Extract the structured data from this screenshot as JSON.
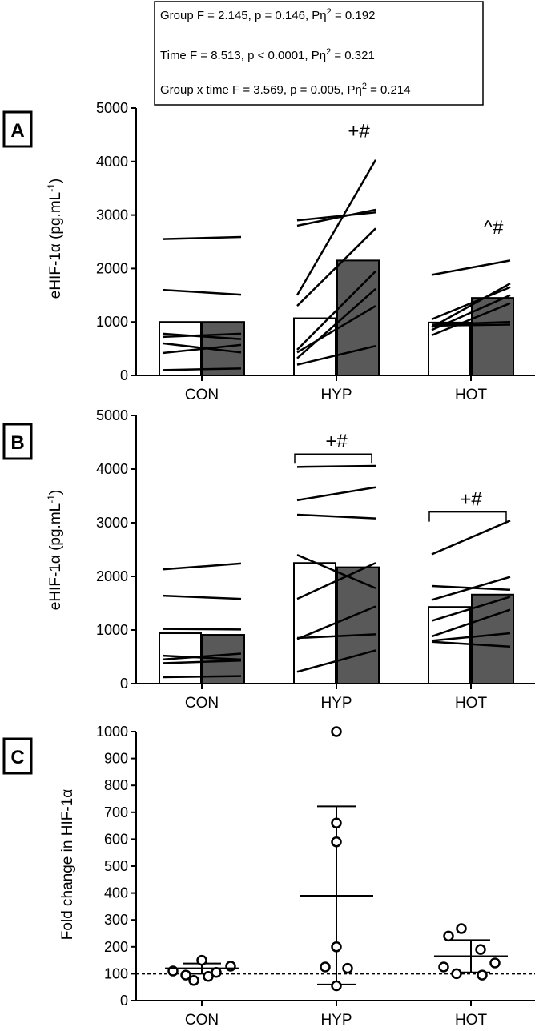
{
  "stats_box": {
    "lines": [
      {
        "prefix": "Group F = 2.145, p = 0.146, Pη",
        "sup": "2",
        "suffix": " = 0.192"
      },
      {
        "prefix": "Time F = 8.513, p < 0.0001, Pη",
        "sup": "2",
        "suffix": " = 0.321"
      },
      {
        "prefix": "Group x time  F = 3.569, p = 0.005, Pη",
        "sup": "2",
        "suffix": " = 0.214"
      }
    ]
  },
  "chart_data": [
    {
      "panel": "A",
      "type": "bar",
      "ylabel_main": "eHIF-1α (pg.mL",
      "ylabel_sup": "-1",
      "ylabel_end": ")",
      "ylim": [
        0,
        5000
      ],
      "yticks": [
        0,
        1000,
        2000,
        3000,
        4000,
        5000
      ],
      "categories": [
        "CON",
        "HYP",
        "HOT"
      ],
      "series": [
        {
          "fill": "#ffffff",
          "values": [
            1000,
            1070,
            990
          ]
        },
        {
          "fill": "#595959",
          "values": [
            1000,
            2150,
            1450
          ]
        }
      ],
      "individual_lines": [
        [
          [
            2550,
            2590
          ],
          [
            1600,
            1510
          ],
          [
            780,
            680
          ],
          [
            720,
            780
          ],
          [
            600,
            430
          ],
          [
            420,
            570
          ],
          [
            100,
            130
          ]
        ],
        [
          [
            2800,
            3100
          ],
          [
            2900,
            3050
          ],
          [
            1500,
            4030
          ],
          [
            1300,
            2750
          ],
          [
            480,
            1950
          ],
          [
            430,
            1300
          ],
          [
            320,
            1620
          ],
          [
            200,
            550
          ]
        ],
        [
          [
            1880,
            2150
          ],
          [
            1050,
            1650
          ],
          [
            900,
            1720
          ],
          [
            850,
            1500
          ],
          [
            750,
            1350
          ],
          [
            930,
            950
          ],
          [
            950,
            1000
          ]
        ]
      ],
      "annotations": [
        {
          "category": "HYP",
          "text": "+#",
          "y": 4450
        },
        {
          "category": "HOT",
          "text": "^#",
          "y": 2650
        }
      ],
      "colors": {
        "bar_edge": "#000000",
        "line": "#000000"
      }
    },
    {
      "panel": "B",
      "type": "bar",
      "ylabel_main": "eHIF-1α (pg.mL",
      "ylabel_sup": "-1",
      "ylabel_end": ")",
      "ylim": [
        0,
        5000
      ],
      "yticks": [
        0,
        1000,
        2000,
        3000,
        4000,
        5000
      ],
      "categories": [
        "CON",
        "HYP",
        "HOT"
      ],
      "series": [
        {
          "fill": "#ffffff",
          "values": [
            940,
            2250,
            1430
          ]
        },
        {
          "fill": "#595959",
          "values": [
            910,
            2170,
            1660
          ]
        }
      ],
      "individual_lines": [
        [
          [
            2130,
            2240
          ],
          [
            1640,
            1580
          ],
          [
            1020,
            1010
          ],
          [
            520,
            450
          ],
          [
            450,
            560
          ],
          [
            380,
            430
          ],
          [
            120,
            140
          ]
        ],
        [
          [
            4040,
            4060
          ],
          [
            3420,
            3660
          ],
          [
            3150,
            3080
          ],
          [
            2400,
            1780
          ],
          [
            1580,
            2250
          ],
          [
            850,
            920
          ],
          [
            830,
            1440
          ],
          [
            220,
            620
          ]
        ],
        [
          [
            2410,
            3040
          ],
          [
            1820,
            1750
          ],
          [
            1560,
            1990
          ],
          [
            1170,
            1620
          ],
          [
            880,
            1380
          ],
          [
            800,
            940
          ],
          [
            780,
            690
          ]
        ]
      ],
      "brackets": [
        {
          "category": "HYP",
          "text": "+#",
          "y": 4280
        },
        {
          "category": "HOT",
          "text": "+#",
          "y": 3200
        }
      ],
      "colors": {
        "bar_edge": "#000000",
        "line": "#000000"
      }
    },
    {
      "panel": "C",
      "type": "scatter",
      "ylabel_main": "Fold change in HIF-1",
      "ylabel_greek": "α",
      "ylim": [
        0,
        1000
      ],
      "yticks": [
        0,
        100,
        200,
        300,
        400,
        500,
        600,
        700,
        800,
        900,
        1000
      ],
      "reference_line": 100,
      "categories": [
        "CON",
        "HYP",
        "HOT"
      ],
      "points": [
        [
          [
            -36,
            110
          ],
          [
            -20,
            95
          ],
          [
            -10,
            75
          ],
          [
            0,
            150
          ],
          [
            8,
            90
          ],
          [
            18,
            105
          ],
          [
            36,
            128
          ]
        ],
        [
          [
            0,
            1000
          ],
          [
            0,
            660
          ],
          [
            0,
            590
          ],
          [
            0,
            200
          ],
          [
            -14,
            125
          ],
          [
            14,
            120
          ],
          [
            0,
            55
          ]
        ],
        [
          [
            -12,
            268
          ],
          [
            -28,
            240
          ],
          [
            12,
            190
          ],
          [
            -34,
            125
          ],
          [
            30,
            140
          ],
          [
            -18,
            100
          ],
          [
            14,
            95
          ]
        ]
      ],
      "mean": [
        120,
        390,
        165
      ],
      "sd_upper": [
        138,
        722,
        225
      ],
      "sd_lower": [
        100,
        60,
        105
      ],
      "colors": {
        "point_edge": "#000000",
        "ref_line": "#000000"
      }
    }
  ]
}
